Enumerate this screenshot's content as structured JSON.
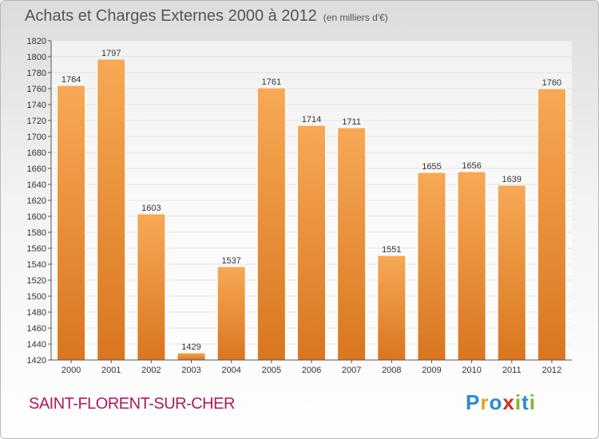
{
  "header": {
    "title": "Achats et Charges Externes 2000 à 2012",
    "unit": "(en milliers d'€)"
  },
  "footer": {
    "town": "SAINT-FLORENT-SUR-CHER"
  },
  "logo": {
    "letters": [
      {
        "ch": "P",
        "color": "#2a8bd6"
      },
      {
        "ch": "r",
        "color": "#e9a21a"
      },
      {
        "ch": "o",
        "color": "#2a8bd6"
      },
      {
        "ch": "x",
        "color": "#d42a2a"
      },
      {
        "ch": "i",
        "color": "#7cb82f"
      },
      {
        "ch": "t",
        "color": "#2a8bd6"
      },
      {
        "ch": "i",
        "color": "#7cb82f"
      }
    ]
  },
  "colors": {
    "bar_top": "#f7a955",
    "bar_bottom": "#d9761f",
    "bar_edge": "#ffffff"
  },
  "chart_data": {
    "type": "bar",
    "categories": [
      "2000",
      "2001",
      "2002",
      "2003",
      "2004",
      "2005",
      "2006",
      "2007",
      "2008",
      "2009",
      "2010",
      "2011",
      "2012"
    ],
    "values": [
      1764,
      1797,
      1603,
      1429,
      1537,
      1761,
      1714,
      1711,
      1551,
      1655,
      1656,
      1639,
      1760
    ],
    "title": "Achats et Charges Externes 2000 à 2012",
    "ylim": [
      1420,
      1820
    ],
    "yticks": [
      1420,
      1440,
      1460,
      1480,
      1500,
      1520,
      1540,
      1560,
      1580,
      1600,
      1620,
      1640,
      1660,
      1680,
      1700,
      1720,
      1740,
      1760,
      1780,
      1800,
      1820
    ],
    "grid": true
  }
}
